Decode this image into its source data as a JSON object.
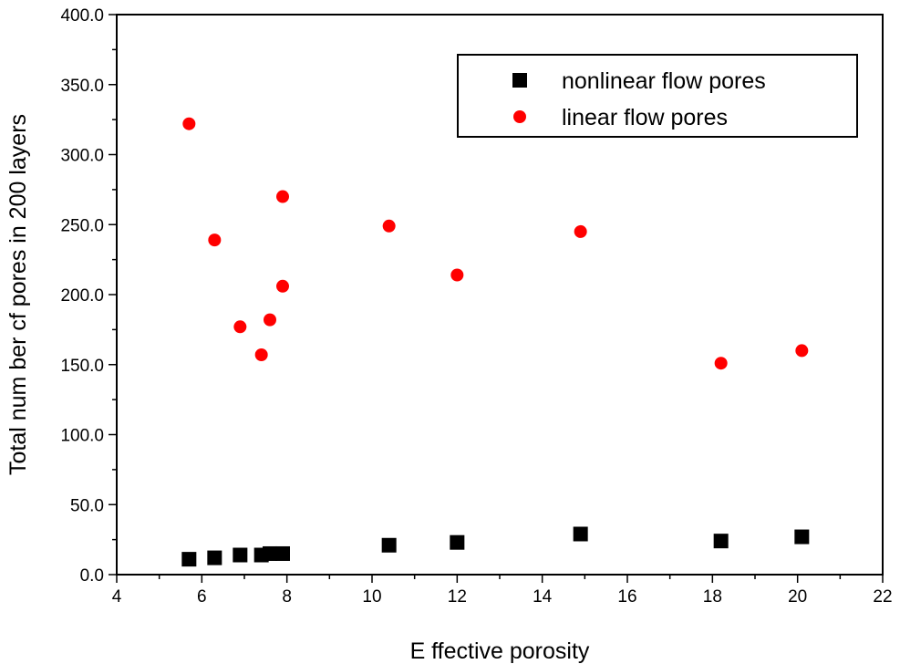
{
  "chart_data": {
    "type": "scatter",
    "xlabel": "E ffective porosity",
    "ylabel": "Total num ber cf pores in 200 layers",
    "xlim": [
      4,
      22
    ],
    "ylim": [
      0,
      400
    ],
    "x_ticks": [
      "4",
      "6",
      "8",
      "10",
      "12",
      "14",
      "16",
      "18",
      "20",
      "22"
    ],
    "y_ticks": [
      "0.0",
      "50.0",
      "100.0",
      "150.0",
      "200.0",
      "250.0",
      "300.0",
      "350.0",
      "400.0"
    ],
    "legend_position": "top-right",
    "grid": false,
    "series": [
      {
        "name": "nonlinear flow  pores",
        "marker": "square",
        "color": "#000000",
        "points": [
          {
            "x": 5.7,
            "y": 11
          },
          {
            "x": 6.3,
            "y": 12
          },
          {
            "x": 6.9,
            "y": 14
          },
          {
            "x": 7.4,
            "y": 14
          },
          {
            "x": 7.6,
            "y": 15
          },
          {
            "x": 7.9,
            "y": 15
          },
          {
            "x": 10.4,
            "y": 21
          },
          {
            "x": 12.0,
            "y": 23
          },
          {
            "x": 14.9,
            "y": 29
          },
          {
            "x": 18.2,
            "y": 24
          },
          {
            "x": 20.1,
            "y": 27
          }
        ]
      },
      {
        "name": "linear flow pores",
        "marker": "circle",
        "color": "#ff0000",
        "points": [
          {
            "x": 5.7,
            "y": 322
          },
          {
            "x": 6.3,
            "y": 239
          },
          {
            "x": 6.9,
            "y": 177
          },
          {
            "x": 7.4,
            "y": 157
          },
          {
            "x": 7.6,
            "y": 182
          },
          {
            "x": 7.9,
            "y": 270
          },
          {
            "x": 7.9,
            "y": 206
          },
          {
            "x": 10.4,
            "y": 249
          },
          {
            "x": 12.0,
            "y": 214
          },
          {
            "x": 14.9,
            "y": 245
          },
          {
            "x": 18.2,
            "y": 151
          },
          {
            "x": 20.1,
            "y": 160
          }
        ]
      }
    ]
  }
}
